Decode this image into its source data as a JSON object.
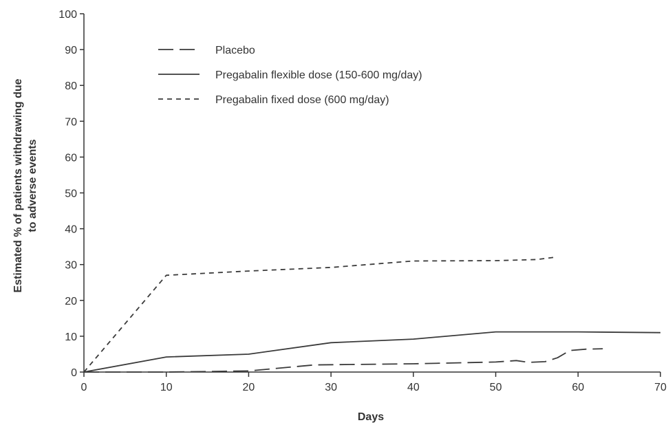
{
  "chart_data": {
    "type": "line",
    "title": "",
    "xlabel": "Days",
    "ylabel_lines": [
      "Estimated % of patients withdrawing due",
      "to adverse events"
    ],
    "xlim": [
      0,
      70
    ],
    "ylim": [
      0,
      100
    ],
    "xticks": [
      0,
      10,
      20,
      30,
      40,
      50,
      60,
      70
    ],
    "yticks": [
      0,
      10,
      20,
      30,
      40,
      50,
      60,
      70,
      80,
      90,
      100
    ],
    "grid": false,
    "legend_position": "top-left",
    "series": [
      {
        "name": "Placebo",
        "line_style": "long-dash",
        "color": "#3a3a3a",
        "x": [
          0,
          10,
          20,
          28,
          40,
          50,
          52.5,
          54,
          56,
          57.5,
          59,
          61,
          63
        ],
        "y": [
          0,
          0,
          0.3,
          2,
          2.3,
          2.8,
          3.2,
          2.7,
          2.9,
          4.0,
          6.0,
          6.4,
          6.5
        ]
      },
      {
        "name": "Pregabalin flexible dose (150-600 mg/day)",
        "line_style": "solid",
        "color": "#3a3a3a",
        "x": [
          0,
          10,
          20,
          30,
          40,
          50,
          60,
          70
        ],
        "y": [
          0,
          4.2,
          5.0,
          8.2,
          9.2,
          11.2,
          11.2,
          11.0
        ]
      },
      {
        "name": "Pregabalin fixed dose (600 mg/day)",
        "line_style": "short-dash",
        "color": "#3a3a3a",
        "x": [
          0,
          10,
          20,
          30,
          40,
          50,
          55,
          57
        ],
        "y": [
          0,
          27.0,
          28.2,
          29.2,
          31.0,
          31.1,
          31.4,
          32.0
        ]
      }
    ]
  }
}
